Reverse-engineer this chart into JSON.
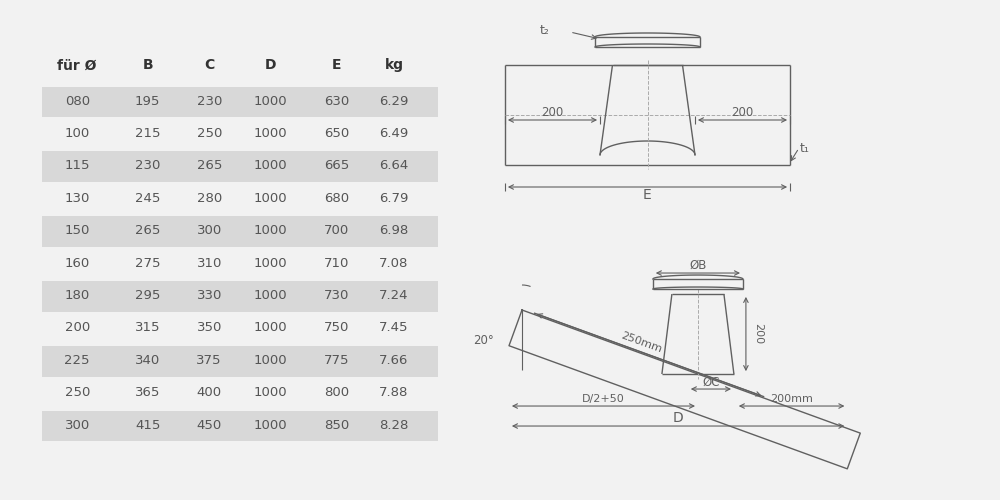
{
  "bg_color": "#f2f2f2",
  "table_headers": [
    "für Ø",
    "B",
    "C",
    "D",
    "E",
    "kg"
  ],
  "table_data": [
    [
      "080",
      "195",
      "230",
      "1000",
      "630",
      "6.29"
    ],
    [
      "100",
      "215",
      "250",
      "1000",
      "650",
      "6.49"
    ],
    [
      "115",
      "230",
      "265",
      "1000",
      "665",
      "6.64"
    ],
    [
      "130",
      "245",
      "280",
      "1000",
      "680",
      "6.79"
    ],
    [
      "150",
      "265",
      "300",
      "1000",
      "700",
      "6.98"
    ],
    [
      "160",
      "275",
      "310",
      "1000",
      "710",
      "7.08"
    ],
    [
      "180",
      "295",
      "330",
      "1000",
      "730",
      "7.24"
    ],
    [
      "200",
      "315",
      "350",
      "1000",
      "750",
      "7.45"
    ],
    [
      "225",
      "340",
      "375",
      "1000",
      "775",
      "7.66"
    ],
    [
      "250",
      "365",
      "400",
      "1000",
      "800",
      "7.88"
    ],
    [
      "300",
      "415",
      "450",
      "1000",
      "850",
      "8.28"
    ]
  ],
  "shaded_rows": [
    0,
    2,
    4,
    6,
    8,
    10
  ],
  "row_shade_color": "#d8d8d8",
  "text_color": "#555555",
  "header_color": "#333333",
  "line_color": "#606060",
  "dim_color": "#606060"
}
